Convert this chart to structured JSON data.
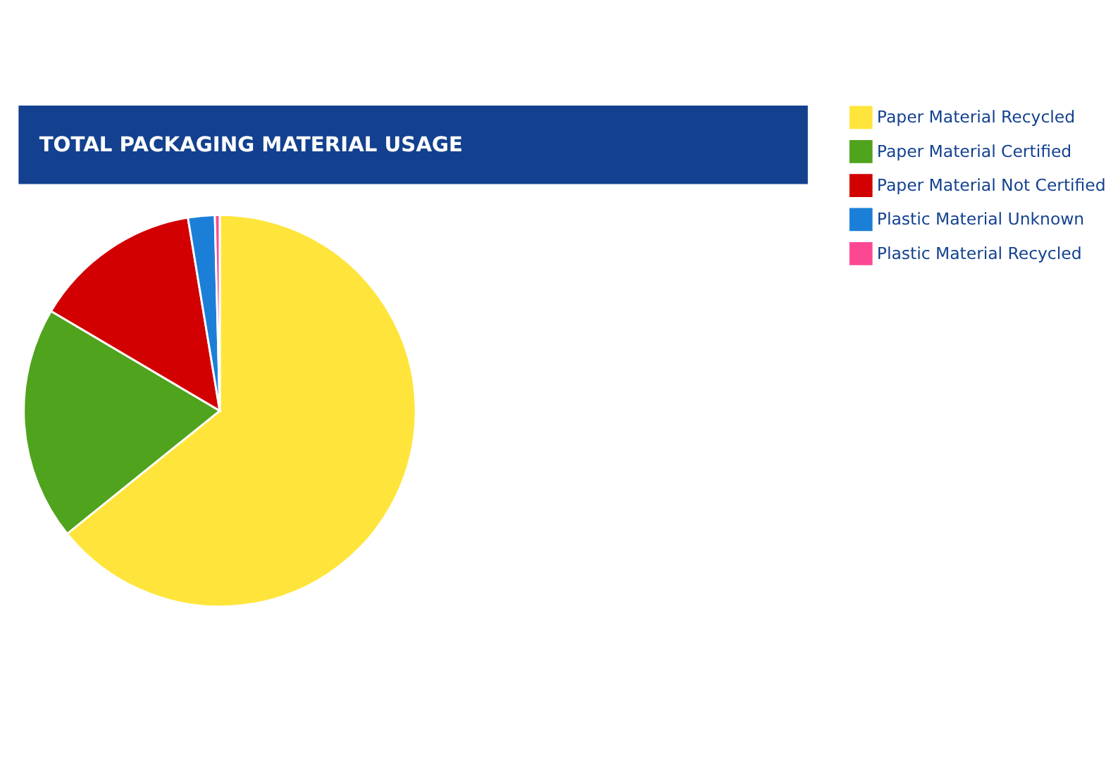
{
  "chart_data": {
    "type": "pie",
    "title": "TOTAL PACKAGING MATERIAL USAGE",
    "categories": [
      "Paper Material Recycled",
      "Paper Material Certified",
      "Paper Material Not Certified",
      "Plastic Material Unknown",
      "Plastic Material Recycled"
    ],
    "values": [
      64.2,
      19.3,
      13.9,
      2.2,
      0.4
    ],
    "colors": [
      "#ffe53b",
      "#4fa31d",
      "#d20000",
      "#1b7fd8",
      "#fc4893"
    ],
    "legend": "top right"
  }
}
